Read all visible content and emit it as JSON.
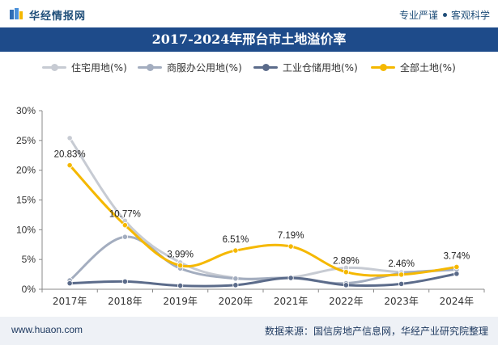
{
  "header": {
    "logo_text": "华经情报网",
    "tagline_left": "专业严谨",
    "tagline_right": "客观科学"
  },
  "footer": {
    "website": "www.huaon.com",
    "source": "数据来源：国信房地产信息网，华经产业研究院整理"
  },
  "colors": {
    "title_bar": "#1e4b8a",
    "residential": "#c7cbd3",
    "commercial": "#a3adbf",
    "industrial": "#5b6b8a",
    "all_land": "#f5b800"
  },
  "chart_data": {
    "type": "line",
    "title": "2017-2024年邢台市土地溢价率",
    "categories": [
      "2017年",
      "2018年",
      "2019年",
      "2020年",
      "2021年",
      "2022年",
      "2023年",
      "2024年"
    ],
    "ylim": [
      0,
      30
    ],
    "yticks": [
      "0%",
      "5%",
      "10%",
      "15%",
      "20%",
      "25%",
      "30%"
    ],
    "grid": false,
    "legend_position": "top",
    "smooth": true,
    "series": [
      {
        "name": "住宅用地(%)",
        "color": "#c7cbd3",
        "values": [
          25.4,
          11.5,
          4.5,
          1.9,
          2.0,
          3.6,
          2.9,
          3.3
        ]
      },
      {
        "name": "商服办公用地(%)",
        "color": "#a3adbf",
        "values": [
          1.5,
          8.8,
          3.5,
          1.8,
          1.9,
          1.0,
          2.7,
          3.3
        ]
      },
      {
        "name": "工业仓储用地(%)",
        "color": "#5b6b8a",
        "values": [
          1.0,
          1.3,
          0.6,
          0.7,
          1.9,
          0.7,
          0.9,
          2.6
        ]
      },
      {
        "name": "全部土地(%)",
        "color": "#f5b800",
        "values": [
          20.83,
          10.77,
          3.99,
          6.51,
          7.19,
          2.89,
          2.46,
          3.74
        ],
        "data_labels": [
          "20.83%",
          "10.77%",
          "3.99%",
          "6.51%",
          "7.19%",
          "2.89%",
          "2.46%",
          "3.74%"
        ]
      }
    ]
  }
}
